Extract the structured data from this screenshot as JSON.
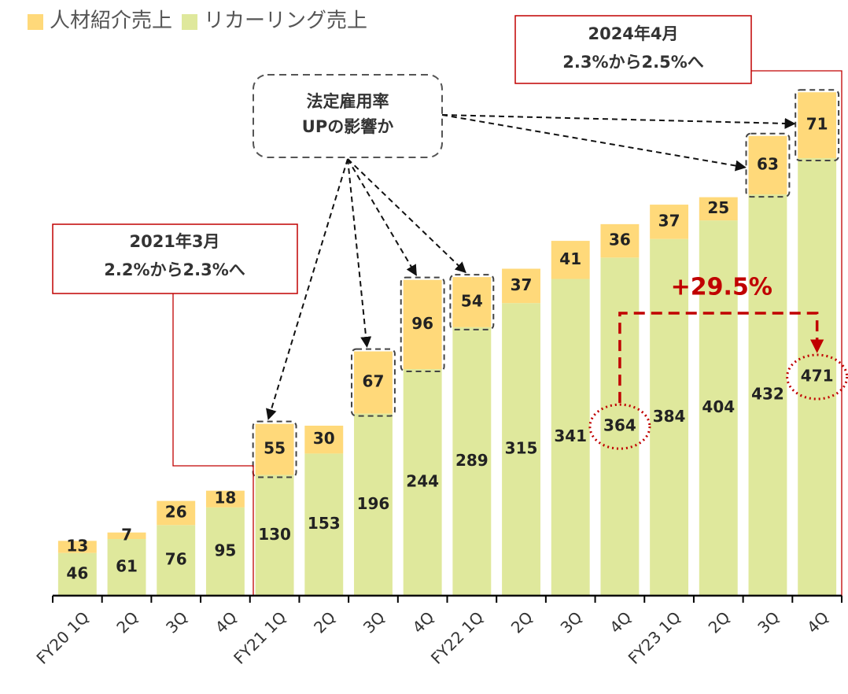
{
  "chart_data": {
    "type": "stacked_bar",
    "categories": [
      "FY20 1Q",
      "2Q",
      "3Q",
      "4Q",
      "FY21 1Q",
      "2Q",
      "3Q",
      "4Q",
      "FY22 1Q",
      "2Q",
      "3Q",
      "4Q",
      "FY23 1Q",
      "2Q",
      "3Q",
      "4Q"
    ],
    "series": [
      {
        "name": "リカーリング売上",
        "color": "#dfe89c",
        "values": [
          46,
          61,
          76,
          95,
          130,
          153,
          196,
          244,
          289,
          315,
          341,
          364,
          384,
          404,
          432,
          471
        ]
      },
      {
        "name": "人材紹介売上",
        "color": "#ffd97a",
        "values": [
          13,
          7,
          26,
          18,
          55,
          30,
          67,
          96,
          54,
          37,
          41,
          36,
          37,
          25,
          63,
          71
        ]
      }
    ],
    "ylim": [
      0,
      560
    ],
    "legend_order": [
      1,
      0
    ],
    "annotations": {
      "note_2021": [
        "2021年3月",
        "2.2%から2.3%へ"
      ],
      "note_2024": [
        "2024年4月",
        "2.3%から2.5%へ"
      ],
      "cause": {
        "text": [
          "法定雇用率",
          "UPの影響か"
        ],
        "targets": [
          4,
          6,
          7,
          8,
          14,
          15
        ]
      },
      "growth": {
        "text": "+29.5%",
        "from": 11,
        "to": 15
      }
    }
  }
}
